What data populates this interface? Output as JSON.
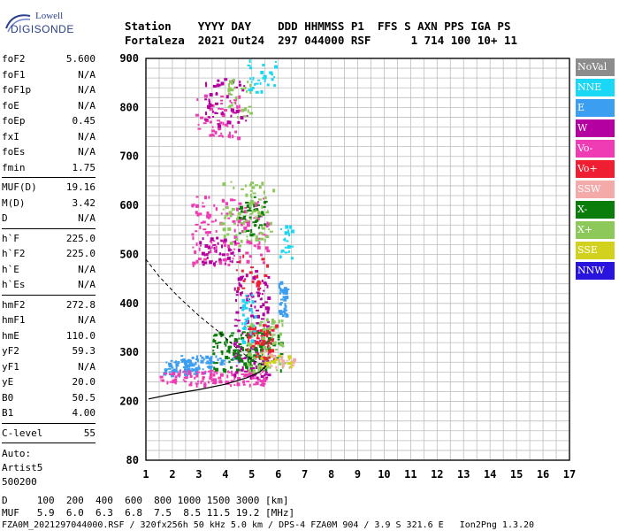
{
  "brand": {
    "top": "Lowell",
    "bottom": "DIGISONDE"
  },
  "header": {
    "row1": "Station    YYYY DAY    DDD HHMMSS P1  FFS S AXN PPS IGA PS",
    "row2": "Fortaleza  2021 Out24  297 044000 RSF      1 714 100 10+ 11"
  },
  "params": {
    "group1": [
      {
        "k": "foF2",
        "v": "5.600"
      },
      {
        "k": "foF1",
        "v": "N/A"
      },
      {
        "k": "foF1p",
        "v": "N/A"
      },
      {
        "k": "foE",
        "v": "N/A"
      },
      {
        "k": "foEp",
        "v": "0.45"
      },
      {
        "k": "fxI",
        "v": "N/A"
      },
      {
        "k": "foEs",
        "v": "N/A"
      },
      {
        "k": "fmin",
        "v": "1.75"
      }
    ],
    "group2": [
      {
        "k": "MUF(D)",
        "v": "19.16"
      },
      {
        "k": "M(D)",
        "v": "3.42"
      },
      {
        "k": "D",
        "v": "N/A"
      }
    ],
    "group3": [
      {
        "k": "h`F",
        "v": "225.0"
      },
      {
        "k": "h`F2",
        "v": "225.0"
      },
      {
        "k": "h`E",
        "v": "N/A"
      },
      {
        "k": "h`Es",
        "v": "N/A"
      }
    ],
    "group4": [
      {
        "k": "hmF2",
        "v": "272.8"
      },
      {
        "k": "hmF1",
        "v": "N/A"
      },
      {
        "k": "hmE",
        "v": "110.0"
      },
      {
        "k": "yF2",
        "v": "59.3"
      },
      {
        "k": "yF1",
        "v": "N/A"
      },
      {
        "k": "yE",
        "v": "20.0"
      },
      {
        "k": "B0",
        "v": "50.5"
      },
      {
        "k": "B1",
        "v": "4.00"
      }
    ],
    "group5": [
      {
        "k": "C-level",
        "v": "55"
      }
    ],
    "auto": [
      "Auto:",
      "Artist5",
      "500200"
    ]
  },
  "legend": [
    {
      "label": "NoVal",
      "color": "#8c8c8c"
    },
    {
      "label": "NNE",
      "color": "#19d7f5"
    },
    {
      "label": "E",
      "color": "#3c9ef0"
    },
    {
      "label": "W",
      "color": "#b400a0"
    },
    {
      "label": "Vo-",
      "color": "#f03cb4"
    },
    {
      "label": "Vo+",
      "color": "#f01e32"
    },
    {
      "label": "SSW",
      "color": "#f5aaaa"
    },
    {
      "label": "X-",
      "color": "#0a7d0a"
    },
    {
      "label": "X+",
      "color": "#8cc85a"
    },
    {
      "label": "SSE",
      "color": "#d2d21e"
    },
    {
      "label": "NNW",
      "color": "#2814dc"
    }
  ],
  "chart_data": {
    "type": "scatter",
    "xlim": [
      1,
      17
    ],
    "ylim": [
      80,
      900
    ],
    "x_ticks": [
      "1",
      "2",
      "3",
      "4",
      "5",
      "6",
      "7",
      "8",
      "9",
      "10",
      "11",
      "12",
      "13",
      "14",
      "15",
      "16",
      "17"
    ],
    "y_ticks": [
      {
        "v": 900,
        "label": "900"
      },
      {
        "v": 800,
        "label": "800"
      },
      {
        "v": 700,
        "label": "700"
      },
      {
        "v": 600,
        "label": "600"
      },
      {
        "v": 500,
        "label": "500"
      },
      {
        "v": 400,
        "label": "400"
      },
      {
        "v": 300,
        "label": "300"
      },
      {
        "v": 200,
        "label": "200"
      },
      {
        "v": 80,
        "label": "80"
      }
    ],
    "grid": true,
    "profile_curve": [
      {
        "f": 1.1,
        "h": 205
      },
      {
        "f": 2.0,
        "h": 215
      },
      {
        "f": 3.0,
        "h": 224
      },
      {
        "f": 4.0,
        "h": 235
      },
      {
        "f": 4.8,
        "h": 248
      },
      {
        "f": 5.3,
        "h": 260
      },
      {
        "f": 5.55,
        "h": 272.8
      }
    ],
    "topside_curve": [
      {
        "f": 1.0,
        "h": 490
      },
      {
        "f": 1.5,
        "h": 455
      },
      {
        "f": 2.2,
        "h": 415
      },
      {
        "f": 3.0,
        "h": 375
      },
      {
        "f": 3.8,
        "h": 340
      },
      {
        "f": 4.5,
        "h": 305
      },
      {
        "f": 5.0,
        "h": 285
      },
      {
        "f": 5.4,
        "h": 275
      }
    ],
    "echo_clusters": [
      {
        "color": "#3c9ef0",
        "f1": 1.6,
        "f2": 3.5,
        "h1": 255,
        "h2": 285,
        "n": 70
      },
      {
        "color": "#3c9ef0",
        "f1": 2.3,
        "f2": 4.8,
        "h1": 278,
        "h2": 295,
        "n": 50
      },
      {
        "color": "#f03cb4",
        "f1": 1.5,
        "f2": 5.5,
        "h1": 235,
        "h2": 265,
        "n": 120
      },
      {
        "color": "#b400a0",
        "f1": 4.3,
        "f2": 5.6,
        "h1": 250,
        "h2": 470,
        "n": 160
      },
      {
        "color": "#0a7d0a",
        "f1": 3.5,
        "f2": 6.1,
        "h1": 265,
        "h2": 345,
        "n": 140
      },
      {
        "color": "#8cc85a",
        "f1": 4.8,
        "f2": 6.2,
        "h1": 260,
        "h2": 370,
        "n": 90
      },
      {
        "color": "#f01e32",
        "f1": 4.8,
        "f2": 5.9,
        "h1": 285,
        "h2": 360,
        "n": 50
      },
      {
        "color": "#f5aaaa",
        "f1": 5.6,
        "f2": 6.6,
        "h1": 270,
        "h2": 300,
        "n": 20
      },
      {
        "color": "#d2d21e",
        "f1": 5.3,
        "f2": 6.5,
        "h1": 272,
        "h2": 300,
        "n": 20
      },
      {
        "color": "#3c9ef0",
        "f1": 6.0,
        "f2": 6.3,
        "h1": 370,
        "h2": 450,
        "n": 40
      },
      {
        "color": "#19d7f5",
        "f1": 4.6,
        "f2": 5.1,
        "h1": 320,
        "h2": 420,
        "n": 30
      },
      {
        "color": "#f03cb4",
        "f1": 2.7,
        "f2": 5.6,
        "h1": 480,
        "h2": 620,
        "n": 140
      },
      {
        "color": "#8cc85a",
        "f1": 3.8,
        "f2": 5.8,
        "h1": 520,
        "h2": 650,
        "n": 90
      },
      {
        "color": "#0a7d0a",
        "f1": 4.5,
        "f2": 5.5,
        "h1": 540,
        "h2": 620,
        "n": 40
      },
      {
        "color": "#b400a0",
        "f1": 3.0,
        "f2": 4.5,
        "h1": 480,
        "h2": 540,
        "n": 40
      },
      {
        "color": "#19d7f5",
        "f1": 6.0,
        "f2": 6.5,
        "h1": 490,
        "h2": 560,
        "n": 20
      },
      {
        "color": "#f03cb4",
        "f1": 2.8,
        "f2": 4.5,
        "h1": 740,
        "h2": 830,
        "n": 60
      },
      {
        "color": "#b400a0",
        "f1": 3.2,
        "f2": 4.8,
        "h1": 760,
        "h2": 860,
        "n": 50
      },
      {
        "color": "#8cc85a",
        "f1": 4.0,
        "f2": 5.0,
        "h1": 780,
        "h2": 860,
        "n": 30
      },
      {
        "color": "#19d7f5",
        "f1": 4.8,
        "f2": 5.9,
        "h1": 830,
        "h2": 900,
        "n": 30
      },
      {
        "color": "#f01e32",
        "f1": 4.3,
        "f2": 5.6,
        "h1": 430,
        "h2": 500,
        "n": 20
      }
    ]
  },
  "footer": {
    "d_row": "D     100  200  400  600  800 1000 1500 3000 [km]",
    "muf_row": "MUF   5.9  6.0  6.3  6.8  7.5  8.5 11.5 19.2 [MHz]",
    "info": "FZA0M_2021297044000.RSF / 320fx256h 50 kHz 5.0 km / DPS-4 FZA0M 904 / 3.9 S 321.6 E   Ion2Png 1.3.20"
  }
}
